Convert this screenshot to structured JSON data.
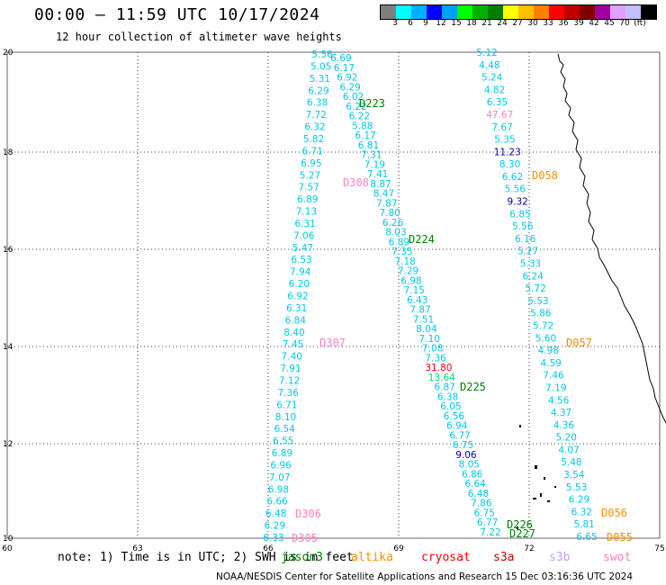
{
  "title": "00:00 – 11:59 UTC 10/17/2024",
  "subtitle": "12 hour collection of altimeter wave heights",
  "colorbar": {
    "colors": [
      "#7f7f7f",
      "#00ffff",
      "#00b0ff",
      "#0000ff",
      "#00a0ff",
      "#00ff00",
      "#00b000",
      "#008000",
      "#ffff00",
      "#ffc000",
      "#ff8000",
      "#ff0000",
      "#c00000",
      "#800000",
      "#a000a0",
      "#e0a0ff",
      "#c0c0ff",
      "#000000"
    ],
    "labels": [
      "3",
      "6",
      "9",
      "12",
      "15",
      "18",
      "21",
      "24",
      "27",
      "30",
      "33",
      "36",
      "39",
      "42",
      "45",
      "70",
      "(ft)"
    ]
  },
  "axes": {
    "x_ticks": [
      "60",
      "63",
      "66",
      "69",
      "72",
      "75"
    ],
    "y_ticks": [
      "10",
      "12",
      "14",
      "16",
      "18",
      "20"
    ]
  },
  "footer": {
    "note": "note:  1) Time is in UTC; 2) SWH is in feet",
    "satellites": [
      {
        "name": "jason3",
        "color": "#008000"
      },
      {
        "name": "altika",
        "color": "#ff8c00"
      },
      {
        "name": "cryosat",
        "color": "#ff0000"
      },
      {
        "name": "s3a",
        "color": "#c00000"
      },
      {
        "name": "s3b",
        "color": "#c0a0ff"
      },
      {
        "name": "swot",
        "color": "#ff80c0"
      }
    ],
    "credit": "NOAA/NESDIS Center for Satellite Applications and Research    15 Dec 03:16:36 UTC 2024"
  },
  "tracks": {
    "track_a": {
      "color": "#00c8e6",
      "values": [
        "5.56",
        "5.05",
        "5.31",
        "6.29",
        "6.38",
        "7.72",
        "6.32",
        "5.82",
        "6.71",
        "6.95",
        "5.27",
        "7.57",
        "6.89",
        "7.13",
        "6.31",
        "7.06",
        "5.47",
        "6.53",
        "7.94",
        "6.20",
        "6.92",
        "6.31",
        "6.84",
        "8.40",
        "7.45",
        "7.40",
        "7.91",
        "7.12",
        "7.36",
        "6.71",
        "8.10",
        "6.54",
        "6.55",
        "6.89",
        "6.96",
        "7.07",
        "6.98",
        "6.66",
        "6.48",
        "6.29",
        "6.33"
      ]
    },
    "track_b": {
      "color": "#00c8e6",
      "values": [
        "6.69",
        "6.17",
        "6.92",
        "6.29",
        "6.02",
        "6.22",
        "6.22",
        "5.88",
        "6.17",
        "6.81",
        "7.31",
        "7.19",
        "7.41",
        "8.87",
        "8.47",
        "7.87",
        "7.80",
        "6.26",
        "8.03",
        "6.89",
        "7.35",
        "7.18",
        "7.29",
        "6.98",
        "7.15",
        "6.43",
        "7.87",
        "7.51",
        "8.04",
        "7.10",
        "7.08",
        "7.36",
        "31.80",
        "13.64",
        "6.87",
        "6.38",
        "6.05",
        "6.56",
        "6.94",
        "6.77",
        "6.75",
        "9.06",
        "8.05",
        "6.86",
        "6.64",
        "6.48",
        "7.86",
        "6.75",
        "6.77",
        "7.22"
      ]
    },
    "track_c": {
      "color": "#00c8e6",
      "values": [
        "5.12",
        "4.48",
        "5.24",
        "4.82",
        "6.35",
        "47.67",
        "7.67",
        "5.35",
        "11.23",
        "8.30",
        "6.62",
        "5.56",
        "9.32",
        "6.85",
        "5.56",
        "6.16",
        "5.27",
        "5.33",
        "6.24",
        "5.72",
        "5.53",
        "5.86",
        "5.72",
        "5.60",
        "4.98",
        "4.59",
        "7.46",
        "7.19",
        "4.56",
        "4.37",
        "4.36",
        "5.20",
        "4.07",
        "5.48",
        "3.54",
        "5.53",
        "6.29",
        "6.32",
        "5.81",
        "6.65"
      ]
    },
    "labels": [
      {
        "text": "D223",
        "color": "#008000"
      },
      {
        "text": "D224",
        "color": "#008000"
      },
      {
        "text": "D225",
        "color": "#008000"
      },
      {
        "text": "D226",
        "color": "#008000"
      },
      {
        "text": "D227",
        "color": "#008000"
      },
      {
        "text": "D058",
        "color": "#ff8c00"
      },
      {
        "text": "D057",
        "color": "#ff8c00"
      },
      {
        "text": "D056",
        "color": "#ff8c00"
      },
      {
        "text": "D055",
        "color": "#ff8c00"
      },
      {
        "text": "D308",
        "color": "#ff80c0"
      },
      {
        "text": "D307",
        "color": "#ff80c0"
      },
      {
        "text": "D306",
        "color": "#ff80c0"
      },
      {
        "text": "D305",
        "color": "#ff80c0"
      }
    ]
  }
}
